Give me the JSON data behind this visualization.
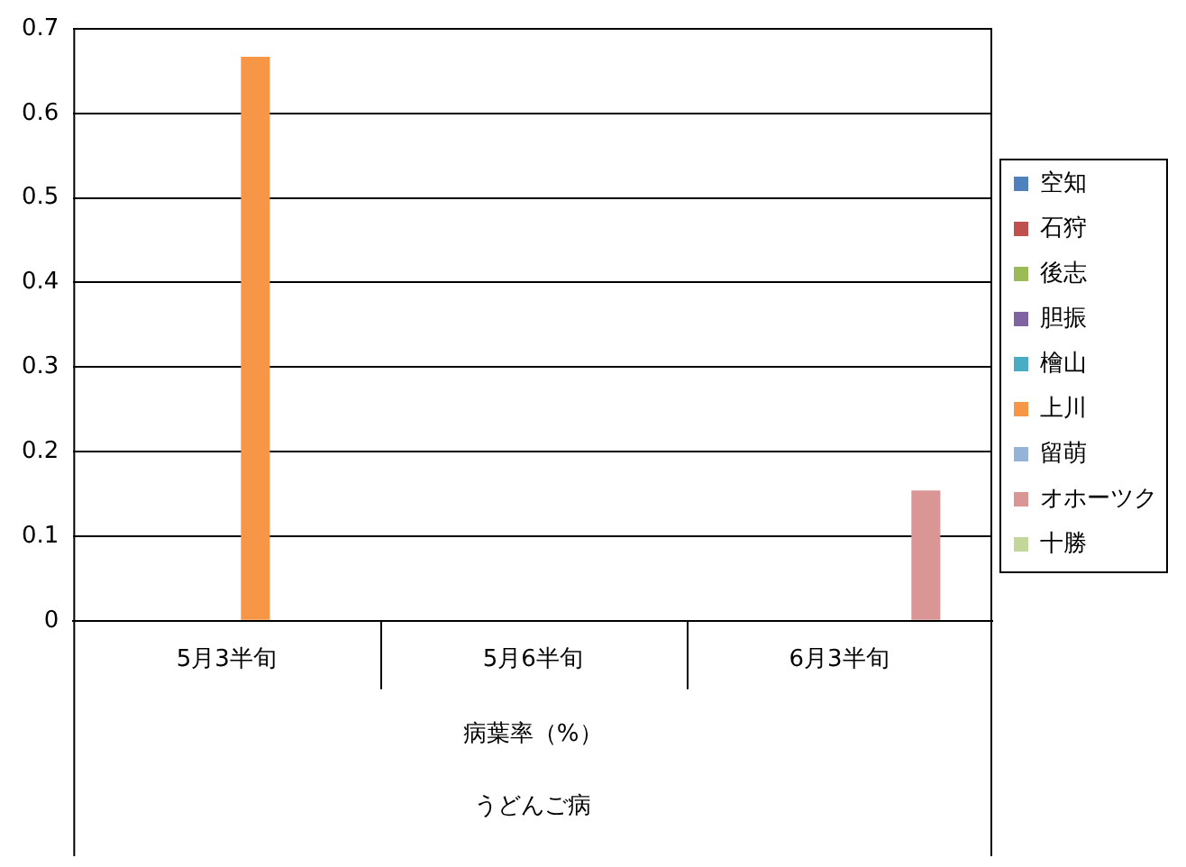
{
  "chart_data": {
    "type": "bar",
    "categories": [
      "5月3半旬",
      "5月6半旬",
      "6月3半旬"
    ],
    "xlabel": "病葉率（%）",
    "annotations": [
      "うどんご病"
    ],
    "series": [
      {
        "name": "空知",
        "color": "#4f81bd",
        "values": [
          null,
          null,
          null
        ]
      },
      {
        "name": "石狩",
        "color": "#c0504d",
        "values": [
          null,
          null,
          null
        ]
      },
      {
        "name": "後志",
        "color": "#9bbb59",
        "values": [
          null,
          null,
          null
        ]
      },
      {
        "name": "胆振",
        "color": "#8064a2",
        "values": [
          null,
          null,
          null
        ]
      },
      {
        "name": "檜山",
        "color": "#4bacc6",
        "values": [
          null,
          null,
          null
        ]
      },
      {
        "name": "上川",
        "color": "#f79646",
        "values": [
          0.667,
          null,
          null
        ]
      },
      {
        "name": "留萌",
        "color": "#95b3d7",
        "values": [
          null,
          null,
          null
        ]
      },
      {
        "name": "オホーツク",
        "color": "#d99694",
        "values": [
          null,
          null,
          0.154
        ]
      },
      {
        "name": "十勝",
        "color": "#c3d69b",
        "values": [
          null,
          null,
          null
        ]
      }
    ],
    "ylim": [
      0,
      0.7
    ],
    "yticks": [
      0,
      0.1,
      0.2,
      0.3,
      0.4,
      0.5,
      0.6,
      0.7
    ],
    "grid": "y",
    "legend": "right"
  }
}
